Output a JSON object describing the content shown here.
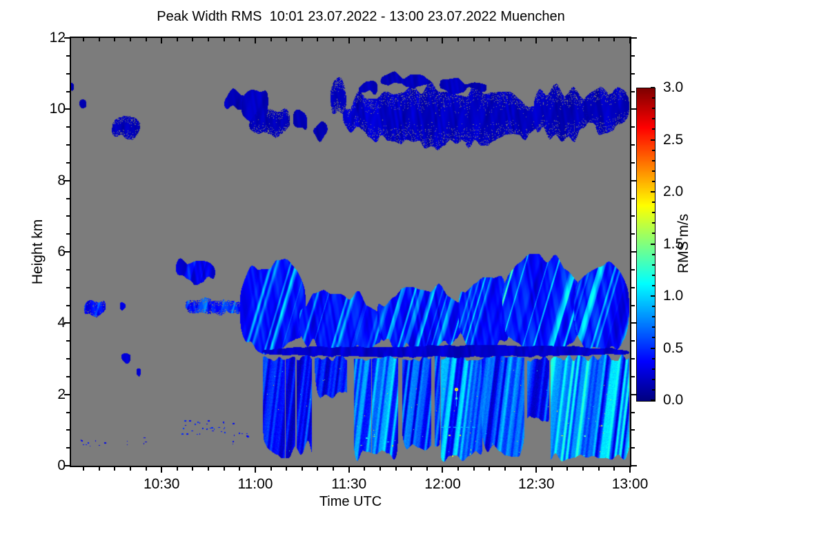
{
  "chart_data": {
    "type": "heatmap",
    "title": "Peak Width RMS  10:01 23.07.2022 - 13:00 23.07.2022 Muenchen",
    "instrument_quantity": "Peak Width RMS",
    "time_start": "10:01",
    "time_end": "13:00",
    "date": "23.07.2022",
    "station": "Muenchen",
    "xlabel": "Time UTC",
    "ylabel": "Height km",
    "colorbar_label": "RMS m/s",
    "x_range_minutes": [
      1,
      180
    ],
    "x_ticks": [
      {
        "minute": 30,
        "label": "10:30"
      },
      {
        "minute": 60,
        "label": "11:00"
      },
      {
        "minute": 90,
        "label": "11:30"
      },
      {
        "minute": 120,
        "label": "12:00"
      },
      {
        "minute": 150,
        "label": "12:30"
      },
      {
        "minute": 180,
        "label": "13:00"
      }
    ],
    "x_minor_step_minutes": 5,
    "y_range_km": [
      0,
      12
    ],
    "y_ticks": [
      0,
      2,
      4,
      6,
      8,
      10,
      12
    ],
    "y_minor_step_km": 0.5,
    "colorbar": {
      "min": 0.0,
      "max": 3.0,
      "ticks": [
        0.0,
        0.5,
        1.0,
        1.5,
        2.0,
        2.5,
        3.0
      ],
      "minor_step": 0.1,
      "colormap": "jet"
    },
    "grid": false,
    "legend_position": "none",
    "colors": {
      "background_nodata": "#7c7c7c",
      "frame": "#000000",
      "page": "#ffffff"
    },
    "features": [
      {
        "kind": "patch",
        "t": [
          0.6,
          1.8
        ],
        "h": [
          10.5,
          10.75
        ],
        "v": 0.15,
        "vn": 0.1,
        "rough": 0.1
      },
      {
        "kind": "patch",
        "t": [
          3.6,
          5.8
        ],
        "h": [
          10.0,
          10.4
        ],
        "v": 0.15,
        "vn": 0.1,
        "rough": 0.15
      },
      {
        "kind": "patch",
        "t": [
          14,
          23
        ],
        "h": [
          9.05,
          9.9
        ],
        "v": 0.15,
        "vn": 0.12,
        "rough": 0.35,
        "holes": 0.25
      },
      {
        "kind": "patch",
        "t": [
          50,
          58
        ],
        "h": [
          9.9,
          10.6
        ],
        "v": 0.15,
        "vn": 0.1,
        "rough": 0.25
      },
      {
        "kind": "patch",
        "t": [
          55.5,
          64
        ],
        "h": [
          9.55,
          10.8
        ],
        "v": 0.15,
        "vn": 0.1,
        "rough": 0.3
      },
      {
        "kind": "patch",
        "t": [
          58,
          71
        ],
        "h": [
          9.15,
          10.15
        ],
        "v": 0.15,
        "vn": 0.1,
        "rough": 0.35,
        "holes": 0.2
      },
      {
        "kind": "patch",
        "t": [
          72,
          76.5
        ],
        "h": [
          9.3,
          10.05
        ],
        "v": 0.15,
        "vn": 0.1,
        "rough": 0.3
      },
      {
        "kind": "patch",
        "t": [
          78.5,
          83
        ],
        "h": [
          9.05,
          9.7
        ],
        "v": 0.15,
        "vn": 0.1,
        "rough": 0.3
      },
      {
        "kind": "patch",
        "t": [
          84,
          89
        ],
        "h": [
          9.7,
          10.95
        ],
        "v": 0.15,
        "vn": 0.1,
        "rough": 0.4,
        "holes": 0.3
      },
      {
        "kind": "patch",
        "t": [
          88,
          151
        ],
        "h": [
          8.85,
          10.8
        ],
        "v": 0.18,
        "vn": 0.14,
        "rough": 0.5,
        "holes": 0.12
      },
      {
        "kind": "patch",
        "t": [
          93,
          99
        ],
        "h": [
          10.3,
          10.9
        ],
        "v": 0.16,
        "vn": 0.1,
        "rough": 0.3
      },
      {
        "kind": "patch",
        "t": [
          100,
          116
        ],
        "h": [
          10.5,
          11.15
        ],
        "v": 0.16,
        "vn": 0.1,
        "rough": 0.3
      },
      {
        "kind": "patch",
        "t": [
          119,
          134
        ],
        "h": [
          10.4,
          11.0
        ],
        "v": 0.16,
        "vn": 0.1,
        "rough": 0.3
      },
      {
        "kind": "patch",
        "t": [
          149,
          167
        ],
        "h": [
          9.0,
          10.85
        ],
        "v": 0.17,
        "vn": 0.12,
        "rough": 0.5,
        "holes": 0.15
      },
      {
        "kind": "patch",
        "t": [
          165,
          179.6
        ],
        "h": [
          9.25,
          10.8
        ],
        "v": 0.17,
        "vn": 0.12,
        "rough": 0.45,
        "holes": 0.15
      },
      {
        "kind": "patch",
        "t": [
          5,
          12
        ],
        "h": [
          4.05,
          4.8
        ],
        "v": 0.3,
        "vn": 0.35,
        "rough": 0.25,
        "holes": 0.15,
        "streak": 0.5
      },
      {
        "kind": "patch",
        "t": [
          16.5,
          18.3
        ],
        "h": [
          4.35,
          4.65
        ],
        "v": 0.25,
        "vn": 0.15,
        "rough": 0.1
      },
      {
        "kind": "patch",
        "t": [
          17,
          20
        ],
        "h": [
          2.85,
          3.3
        ],
        "v": 0.22,
        "vn": 0.15,
        "rough": 0.15
      },
      {
        "kind": "patch",
        "t": [
          21.8,
          23.2
        ],
        "h": [
          2.5,
          2.8
        ],
        "v": 0.22,
        "vn": 0.1,
        "rough": 0.1
      },
      {
        "kind": "patch",
        "t": [
          34.5,
          47
        ],
        "h": [
          5.05,
          5.95
        ],
        "v": 0.28,
        "vn": 0.2,
        "rough": 0.3,
        "streak": 0.3
      },
      {
        "kind": "patch",
        "t": [
          37.5,
          57
        ],
        "h": [
          4.15,
          4.8
        ],
        "v": 0.35,
        "vn": 0.3,
        "rough": 0.2,
        "holes": 0.3,
        "streak": 0.4
      },
      {
        "kind": "patch",
        "t": [
          55,
          76
        ],
        "h": [
          3.0,
          5.9
        ],
        "v": 0.36,
        "vn": 0.22,
        "rough": 0.45,
        "streak": 0.8
      },
      {
        "kind": "patch",
        "t": [
          74,
          101
        ],
        "h": [
          3.0,
          5.05
        ],
        "v": 0.36,
        "vn": 0.22,
        "rough": 0.55,
        "streak": 0.8
      },
      {
        "kind": "patch",
        "t": [
          99,
          127
        ],
        "h": [
          3.0,
          5.25
        ],
        "v": 0.36,
        "vn": 0.22,
        "rough": 0.6,
        "streak": 0.8
      },
      {
        "kind": "patch",
        "t": [
          125,
          142
        ],
        "h": [
          3.0,
          5.5
        ],
        "v": 0.38,
        "vn": 0.22,
        "rough": 0.5,
        "streak": 0.8
      },
      {
        "kind": "patch",
        "t": [
          139,
          164
        ],
        "h": [
          3.0,
          6.0
        ],
        "v": 0.4,
        "vn": 0.25,
        "rough": 0.35,
        "streak": 1.0
      },
      {
        "kind": "patch",
        "t": [
          162,
          179.6
        ],
        "h": [
          3.0,
          5.85
        ],
        "v": 0.4,
        "vn": 0.25,
        "rough": 0.4,
        "streak": 1.0
      },
      {
        "kind": "col",
        "t": [
          62.5,
          78
        ],
        "htop": 3.02,
        "hbot": 0.15,
        "v": 0.42,
        "bright": 0.3,
        "rag": 0.8,
        "gap": 0.15
      },
      {
        "kind": "col",
        "t": [
          79,
          91
        ],
        "htop": 3.02,
        "hbot": 1.7,
        "v": 0.4,
        "bright": 0.25,
        "rag": 1.0,
        "gap": 0.35
      },
      {
        "kind": "col",
        "t": [
          91.5,
          105.5
        ],
        "htop": 3.02,
        "hbot": 0.1,
        "v": 0.6,
        "bright": 0.45,
        "rag": 0.7,
        "gap": 0.1
      },
      {
        "kind": "col",
        "t": [
          107,
          119
        ],
        "htop": 3.02,
        "hbot": 0.25,
        "v": 0.5,
        "bright": 0.35,
        "rag": 0.9,
        "gap": 0.25
      },
      {
        "kind": "col",
        "t": [
          119.5,
          132.5
        ],
        "htop": 3.02,
        "hbot": 0.1,
        "v": 0.62,
        "bright": 0.45,
        "rag": 0.6,
        "gap": 0.1
      },
      {
        "kind": "col",
        "t": [
          132.5,
          146
        ],
        "htop": 3.02,
        "hbot": 0.15,
        "v": 0.55,
        "bright": 0.4,
        "rag": 0.8,
        "gap": 0.15
      },
      {
        "kind": "col",
        "t": [
          147,
          154
        ],
        "htop": 3.02,
        "hbot": 1.0,
        "v": 0.5,
        "bright": 0.35,
        "rag": 0.8,
        "gap": 0.3
      },
      {
        "kind": "col",
        "t": [
          154.5,
          179.6
        ],
        "htop": 3.02,
        "hbot": 0.1,
        "v": 0.7,
        "bright": 0.55,
        "rag": 0.5,
        "gap": 0.05
      },
      {
        "kind": "patch",
        "t": [
          62,
          179.6
        ],
        "h": [
          3.02,
          3.4
        ],
        "v": 0.22,
        "vn": 0.1,
        "rough": 0.08
      },
      {
        "kind": "dots",
        "t": [
          3,
          9
        ],
        "h": [
          0.5,
          0.85
        ],
        "n": 7,
        "v": 0.35
      },
      {
        "kind": "dots",
        "t": [
          8,
          20
        ],
        "h": [
          0.55,
          0.8
        ],
        "n": 4,
        "v": 0.3
      },
      {
        "kind": "dots",
        "t": [
          24,
          26
        ],
        "h": [
          0.55,
          0.8
        ],
        "n": 3,
        "v": 0.3
      },
      {
        "kind": "dots",
        "t": [
          36,
          53
        ],
        "h": [
          0.85,
          1.3
        ],
        "n": 28,
        "v": 0.4
      },
      {
        "kind": "dots",
        "t": [
          52,
          58
        ],
        "h": [
          0.45,
          0.95
        ],
        "n": 8,
        "v": 0.35
      },
      {
        "kind": "dots",
        "t": [
          93,
          104
        ],
        "h": [
          0.15,
          0.9
        ],
        "n": 6,
        "v": 1.5
      },
      {
        "kind": "dots",
        "t": [
          120,
          131
        ],
        "h": [
          0.2,
          1.0
        ],
        "n": 5,
        "v": 1.6
      },
      {
        "kind": "dots",
        "t": [
          156,
          178
        ],
        "h": [
          0.2,
          2.2
        ],
        "n": 8,
        "v": 1.4
      },
      {
        "kind": "hline",
        "t": [
          119.5,
          131
        ],
        "hy": 1.08,
        "v": 0.95
      },
      {
        "kind": "spot",
        "tx": 124.3,
        "hy": 2.15,
        "v": 2.3,
        "r": 2.5
      },
      {
        "kind": "spot",
        "tx": 124.4,
        "hy": 1.9,
        "v": 1.6,
        "r": 1.5
      }
    ]
  }
}
